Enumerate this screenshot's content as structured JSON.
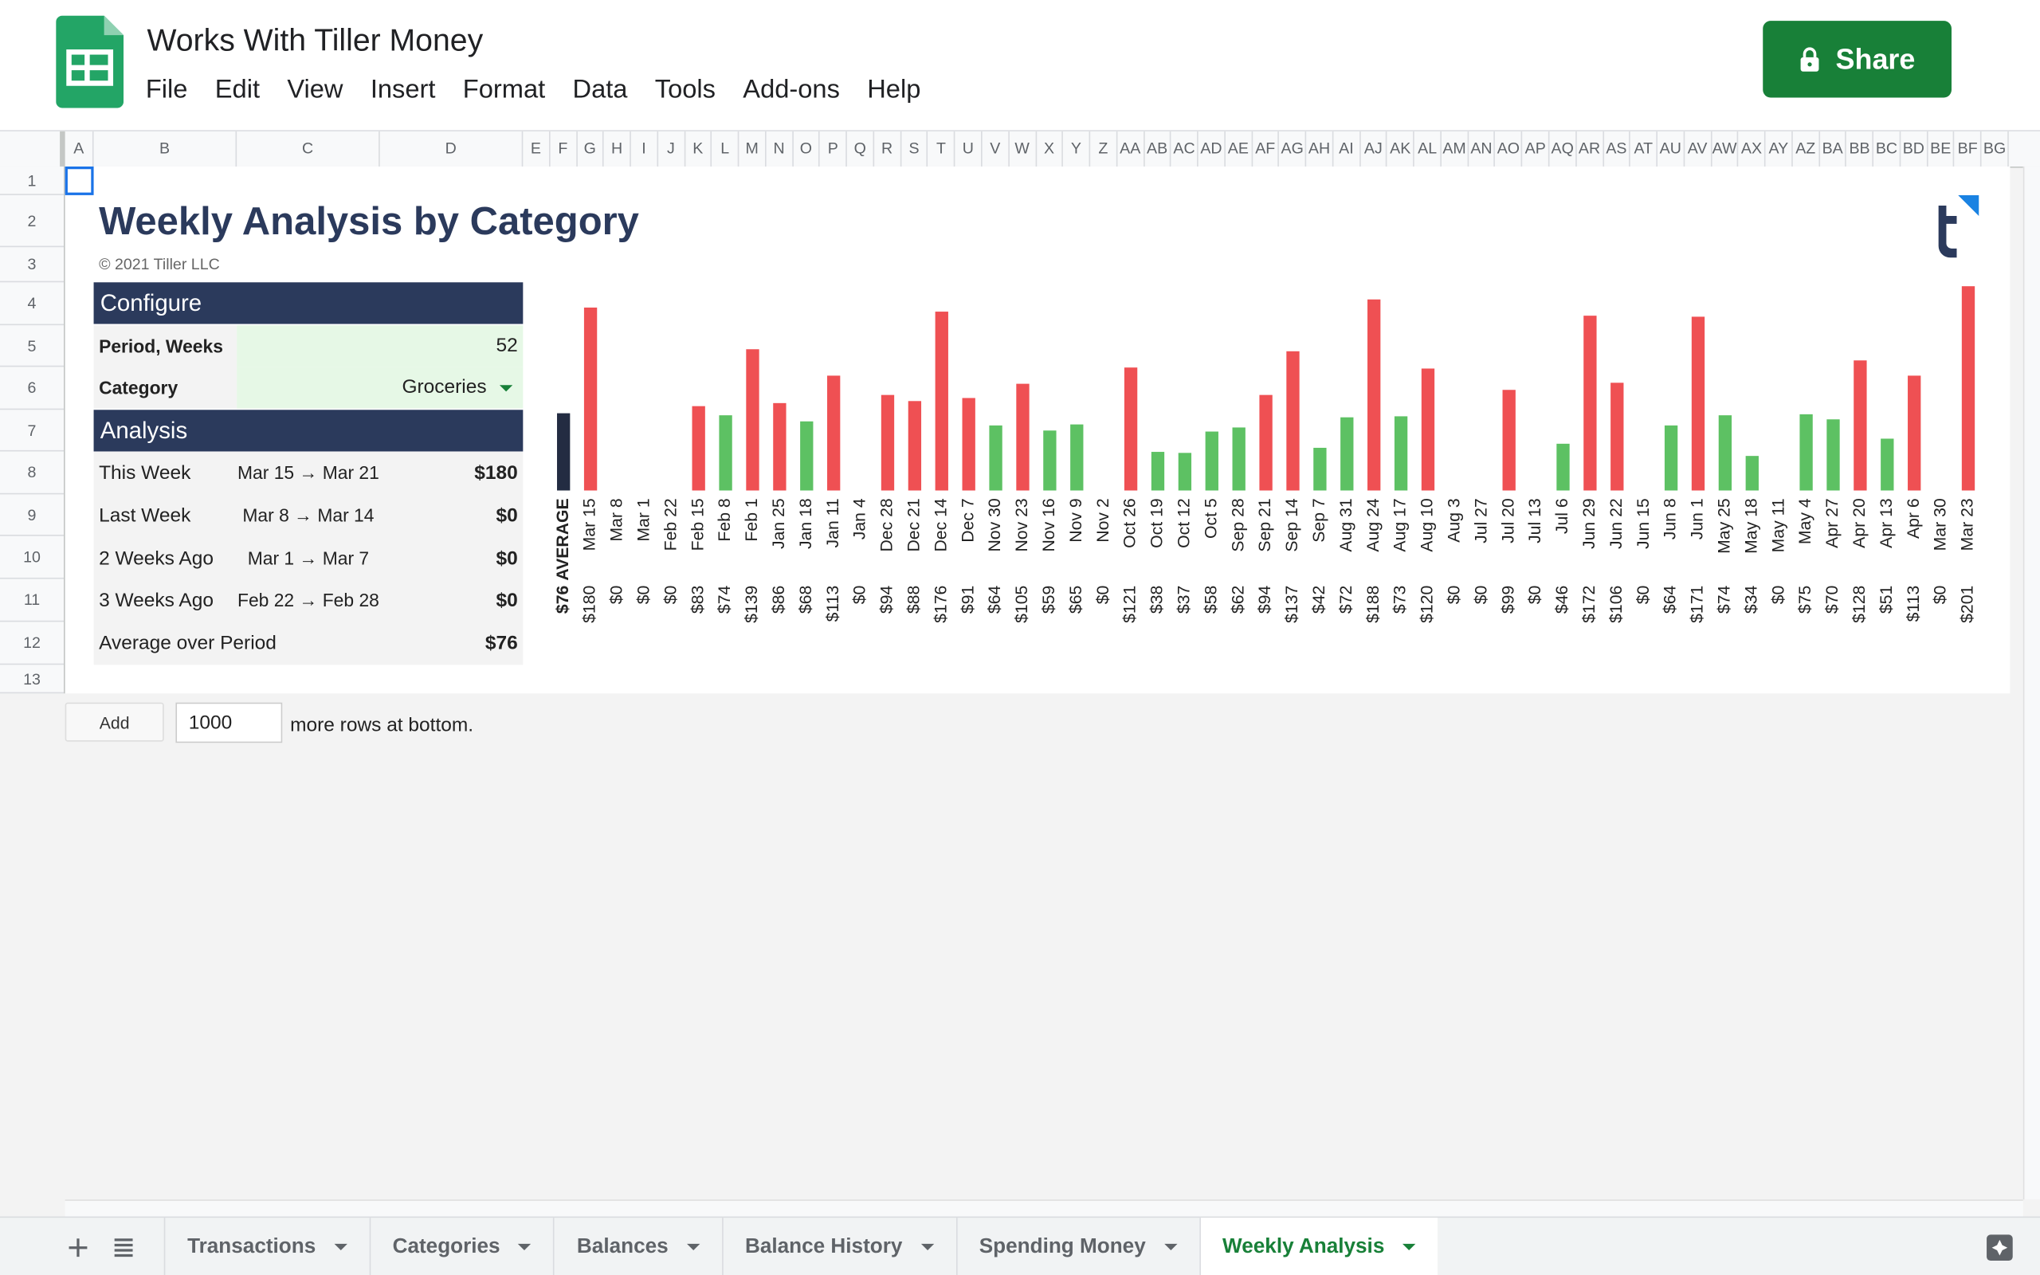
{
  "header": {
    "title": "Works With Tiller Money",
    "menu": [
      "File",
      "Edit",
      "View",
      "Insert",
      "Format",
      "Data",
      "Tools",
      "Add-ons",
      "Help"
    ],
    "share": "Share"
  },
  "grid": {
    "columns": [
      "A",
      "B",
      "C",
      "D",
      "E",
      "F",
      "G",
      "H",
      "I",
      "J",
      "K",
      "L",
      "M",
      "N",
      "O",
      "P",
      "Q",
      "R",
      "S",
      "T",
      "U",
      "V",
      "W",
      "X",
      "Y",
      "Z",
      "AA",
      "AB",
      "AC",
      "AD",
      "AE",
      "AF",
      "AG",
      "AH",
      "AI",
      "AJ",
      "AK",
      "AL",
      "AM",
      "AN",
      "AO",
      "AP",
      "AQ",
      "AR",
      "AS",
      "AT",
      "AU",
      "AV",
      "AW",
      "AX",
      "AY",
      "AZ",
      "BA",
      "BB",
      "BC",
      "BD",
      "BE",
      "BF",
      "BG"
    ],
    "rows": [
      1,
      2,
      3,
      4,
      5,
      6,
      7,
      8,
      9,
      10,
      11,
      12,
      13
    ]
  },
  "sheet": {
    "title": "Weekly Analysis by Category",
    "copyright": "© 2021 Tiller LLC",
    "configure": {
      "heading": "Configure",
      "period_label": "Period, Weeks",
      "period_value": 52,
      "category_label": "Category",
      "category_value": "Groceries"
    },
    "analysis": {
      "heading": "Analysis",
      "rows": [
        {
          "label": "This Week",
          "range": "Mar 15 → Mar 21",
          "amount": "$180"
        },
        {
          "label": "Last Week",
          "range": "Mar 8 → Mar 14",
          "amount": "$0"
        },
        {
          "label": "2 Weeks Ago",
          "range": "Mar 1 → Mar 7",
          "amount": "$0"
        },
        {
          "label": "3 Weeks Ago",
          "range": "Feb 22 → Feb 28",
          "amount": "$0"
        },
        {
          "label": "Average over Period",
          "amount": "$76"
        }
      ]
    }
  },
  "chart_data": {
    "type": "bar",
    "categories": [
      "AVERAGE",
      "Mar 15",
      "Mar 8",
      "Mar 1",
      "Feb 22",
      "Feb 15",
      "Feb 8",
      "Feb 1",
      "Jan 25",
      "Jan 18",
      "Jan 11",
      "Jan 4",
      "Dec 28",
      "Dec 21",
      "Dec 14",
      "Dec 7",
      "Nov 30",
      "Nov 23",
      "Nov 16",
      "Nov 9",
      "Nov 2",
      "Oct 26",
      "Oct 19",
      "Oct 12",
      "Oct 5",
      "Sep 28",
      "Sep 21",
      "Sep 14",
      "Sep 7",
      "Aug 31",
      "Aug 24",
      "Aug 17",
      "Aug 10",
      "Aug 3",
      "Jul 27",
      "Jul 20",
      "Jul 13",
      "Jul 6",
      "Jun 29",
      "Jun 22",
      "Jun 15",
      "Jun 8",
      "Jun 1",
      "May 25",
      "May 18",
      "May 11",
      "May 4",
      "Apr 27",
      "Apr 20",
      "Apr 13",
      "Apr 6",
      "Mar 30",
      "Mar 23"
    ],
    "values": [
      76,
      180,
      0,
      0,
      0,
      83,
      74,
      139,
      86,
      68,
      113,
      0,
      94,
      88,
      176,
      91,
      64,
      105,
      59,
      65,
      0,
      121,
      38,
      37,
      58,
      62,
      94,
      137,
      42,
      72,
      188,
      73,
      120,
      0,
      0,
      99,
      0,
      46,
      172,
      106,
      0,
      64,
      171,
      74,
      34,
      0,
      75,
      70,
      128,
      51,
      113,
      0,
      201
    ],
    "value_labels": [
      "$76",
      "$180",
      "$0",
      "$0",
      "$0",
      "$83",
      "$74",
      "$139",
      "$86",
      "$68",
      "$113",
      "$0",
      "$94",
      "$88",
      "$176",
      "$91",
      "$64",
      "$105",
      "$59",
      "$65",
      "$0",
      "$121",
      "$38",
      "$37",
      "$58",
      "$62",
      "$94",
      "$137",
      "$42",
      "$72",
      "$188",
      "$73",
      "$120",
      "$0",
      "$0",
      "$99",
      "$0",
      "$46",
      "$172",
      "$106",
      "$0",
      "$64",
      "$171",
      "$74",
      "$34",
      "$0",
      "$75",
      "$70",
      "$128",
      "$51",
      "$113",
      "$0",
      "$201"
    ],
    "colors": {
      "average": "#232c42",
      "above": "#ef5053",
      "below": "#5dc163"
    }
  },
  "add_rows": {
    "button": "Add",
    "count": 1000,
    "suffix": "more rows at bottom."
  },
  "tabs": [
    "Transactions",
    "Categories",
    "Balances",
    "Balance History",
    "Spending Money",
    "Weekly Analysis"
  ],
  "active_tab": 5
}
